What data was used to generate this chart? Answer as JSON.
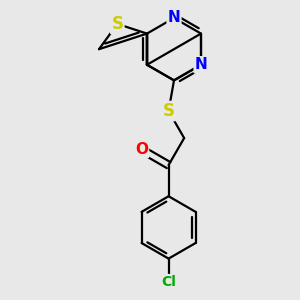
{
  "background_color": "#e8e8e8",
  "atom_colors": {
    "S": "#cccc00",
    "N": "#0000ff",
    "O": "#ff0000",
    "Cl": "#00aa00",
    "C": "#000000"
  },
  "bond_color": "#000000",
  "bond_width": 1.6,
  "font_size_S": 12,
  "font_size_N": 11,
  "font_size_O": 11,
  "font_size_Cl": 10
}
